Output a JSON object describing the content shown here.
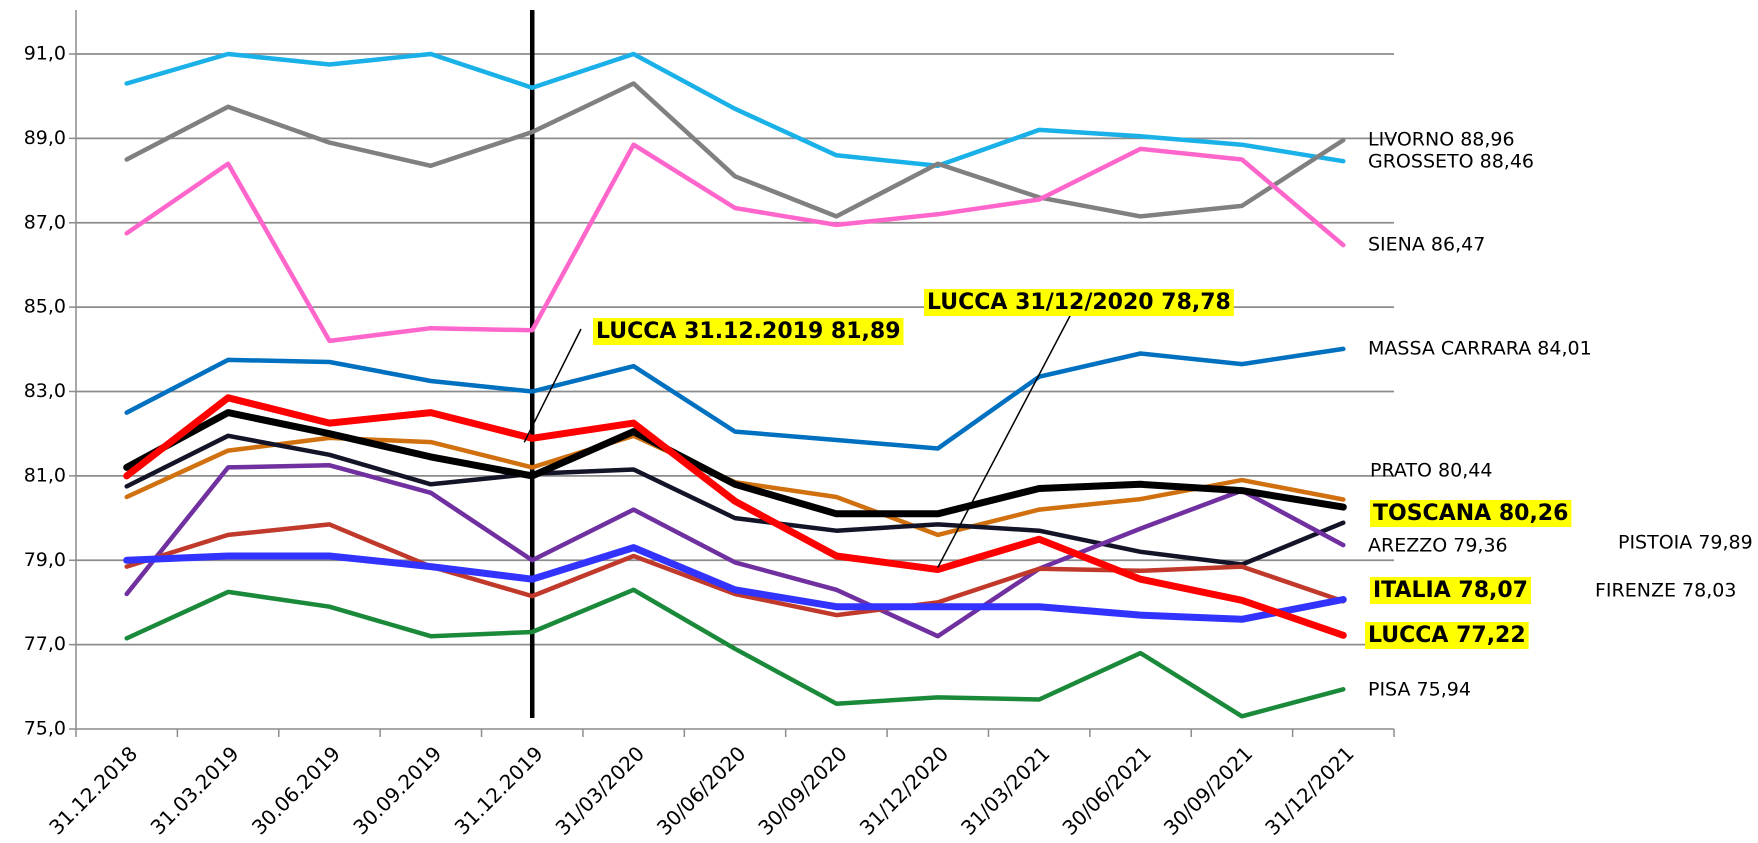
{
  "chart_data": {
    "type": "line",
    "categories": [
      "31.12.2018",
      "31.03.2019",
      "30.06.2019",
      "30.09.2019",
      "31.12.2019",
      "31/03/2020",
      "30/06/2020",
      "30/09/2020",
      "31/12/2020",
      "31/03/2021",
      "30/06/2021",
      "30/09/2021",
      "31/12/2021"
    ],
    "ylim": [
      75,
      91
    ],
    "yticks": [
      {
        "value": 75,
        "label": "75,0"
      },
      {
        "value": 77,
        "label": "77,0"
      },
      {
        "value": 79,
        "label": "79,0"
      },
      {
        "value": 81,
        "label": "81,0"
      },
      {
        "value": 83,
        "label": "83,0"
      },
      {
        "value": 85,
        "label": "85,0"
      },
      {
        "value": 87,
        "label": "87,0"
      },
      {
        "value": 89,
        "label": "89,0"
      },
      {
        "value": 91,
        "label": "91,0"
      }
    ],
    "grid": true,
    "series": [
      {
        "label": "GROSSETO 88,46",
        "color": "#1ab0e8",
        "values": [
          90.3,
          91.0,
          90.75,
          91.0,
          90.2,
          91.0,
          89.7,
          88.6,
          88.35,
          89.2,
          89.05,
          88.85,
          88.46
        ]
      },
      {
        "label": "LIVORNO 88,96",
        "color": "#808080",
        "values": [
          88.5,
          89.75,
          88.9,
          88.35,
          89.15,
          90.3,
          88.1,
          87.15,
          88.4,
          87.6,
          87.15,
          87.4,
          88.96
        ]
      },
      {
        "label": "SIENA 86,47",
        "color": "#ff66cc",
        "values": [
          86.75,
          88.4,
          84.2,
          84.5,
          84.45,
          88.85,
          87.35,
          86.95,
          87.2,
          87.55,
          88.75,
          88.5,
          86.47
        ]
      },
      {
        "label": "MASSA CARRARA 84,01",
        "color": "#0070c0",
        "values": [
          82.5,
          83.75,
          83.7,
          83.25,
          83.0,
          83.6,
          82.05,
          81.85,
          81.65,
          83.35,
          83.9,
          83.65,
          84.01
        ]
      },
      {
        "label": "PRATO 80,44",
        "color": "#d0700f",
        "values": [
          80.5,
          81.6,
          81.9,
          81.8,
          81.2,
          81.95,
          80.85,
          80.5,
          79.6,
          80.2,
          80.45,
          80.9,
          80.44
        ]
      },
      {
        "label": "PISTOIA 79,89",
        "color": "#141428",
        "values": [
          80.75,
          81.95,
          81.5,
          80.8,
          81.05,
          81.15,
          80.0,
          79.7,
          79.85,
          79.7,
          79.2,
          78.9,
          79.89
        ]
      },
      {
        "label": "AREZZO 79,36",
        "color": "#7030a0",
        "values": [
          78.2,
          81.2,
          81.25,
          80.6,
          79.0,
          80.2,
          78.95,
          78.3,
          77.2,
          78.8,
          79.75,
          80.65,
          79.36
        ]
      },
      {
        "label": "FIRENZE 78,03",
        "color": "#c0392b",
        "values": [
          78.85,
          79.6,
          79.85,
          78.85,
          78.15,
          79.1,
          78.2,
          77.7,
          78.0,
          78.8,
          78.75,
          78.85,
          78.03
        ]
      },
      {
        "label": "PISA 75,94",
        "color": "#1a8a3a",
        "values": [
          77.15,
          78.25,
          77.9,
          77.2,
          77.3,
          78.3,
          76.9,
          75.6,
          75.75,
          75.7,
          76.8,
          75.3,
          75.94
        ]
      },
      {
        "label": "TOSCANA 80,26",
        "color": "#000000",
        "highlight": true,
        "values": [
          81.2,
          82.5,
          82.0,
          81.45,
          81.0,
          82.05,
          80.8,
          80.1,
          80.1,
          80.7,
          80.8,
          80.65,
          80.26
        ]
      },
      {
        "label": "ITALIA 78,07",
        "color": "#3333ff",
        "highlight": true,
        "values": [
          79.0,
          79.1,
          79.1,
          78.85,
          78.55,
          79.3,
          78.3,
          77.9,
          77.9,
          77.9,
          77.7,
          77.6,
          78.07
        ]
      },
      {
        "label": "LUCCA 77,22",
        "color": "#ff0000",
        "highlight": true,
        "values": [
          81.0,
          82.85,
          82.25,
          82.5,
          81.89,
          82.25,
          80.4,
          79.1,
          78.78,
          79.5,
          78.55,
          78.05,
          77.22
        ]
      }
    ],
    "annotations": [
      "LUCCA 31.12.2019  81,89",
      "LUCCA 31/12/2020  78,78"
    ]
  }
}
